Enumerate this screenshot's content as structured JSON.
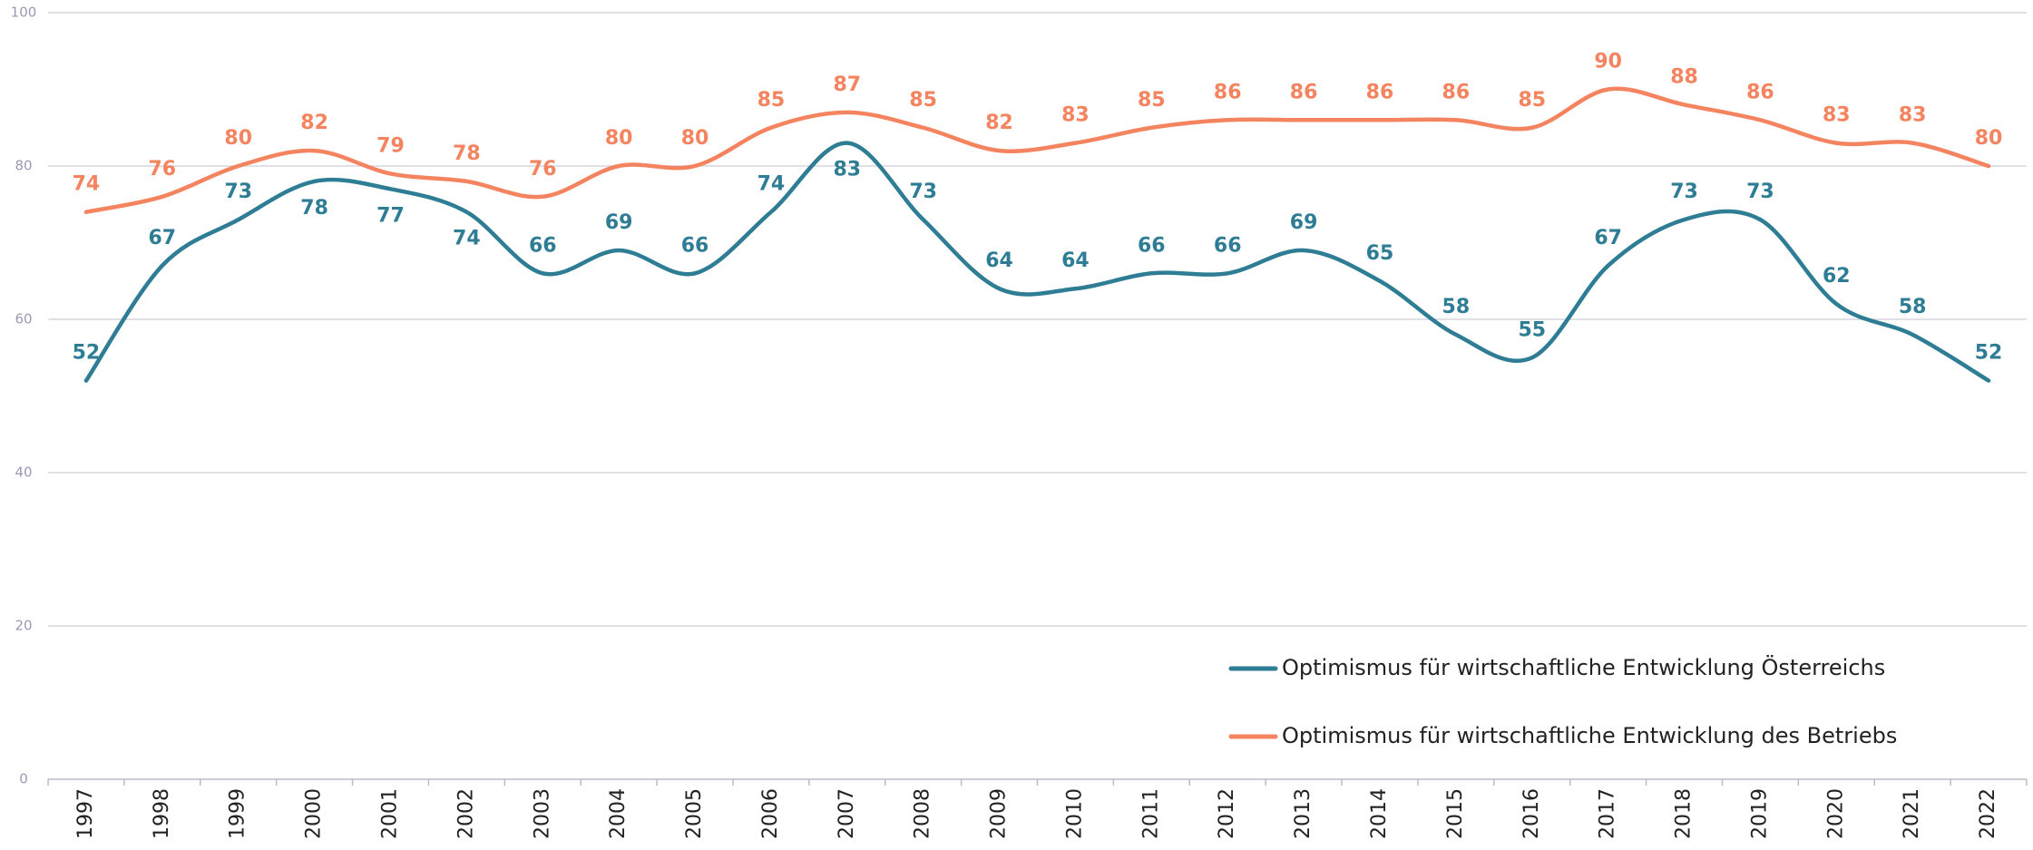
{
  "chart_data": {
    "type": "line",
    "categories": [
      "1997",
      "1998",
      "1999",
      "2000",
      "2001",
      "2002",
      "2003",
      "2004",
      "2005",
      "2006",
      "2007",
      "2008",
      "2009",
      "2010",
      "2011",
      "2012",
      "2013",
      "2014",
      "2015",
      "2016",
      "2017",
      "2018",
      "2019",
      "2020",
      "2021",
      "2022"
    ],
    "series": [
      {
        "name": "Optimismus für wirtschaftliche Entwicklung Österreichs",
        "color": "#2e7d95",
        "values": [
          52,
          67,
          73,
          78,
          77,
          74,
          66,
          69,
          66,
          74,
          83,
          73,
          64,
          64,
          66,
          66,
          69,
          65,
          58,
          55,
          67,
          73,
          73,
          62,
          58,
          52
        ]
      },
      {
        "name": "Optimismus für wirtschaftliche Entwicklung des Betriebs",
        "color": "#f4845f",
        "values": [
          74,
          76,
          80,
          82,
          79,
          78,
          76,
          80,
          80,
          85,
          87,
          85,
          82,
          83,
          85,
          86,
          86,
          86,
          86,
          85,
          90,
          88,
          86,
          83,
          83,
          80
        ]
      }
    ],
    "ylim": [
      0,
      100
    ],
    "yticks": [
      0,
      20,
      40,
      60,
      80,
      100
    ],
    "grid": true
  }
}
